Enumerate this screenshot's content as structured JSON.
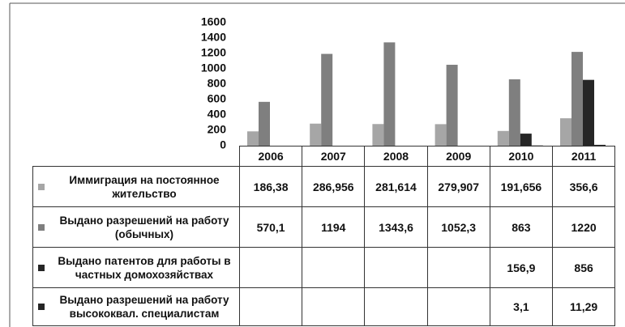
{
  "chart_data": {
    "type": "bar",
    "categories": [
      "2006",
      "2007",
      "2008",
      "2009",
      "2010",
      "2011"
    ],
    "series": [
      {
        "name": "Иммиграция на постоянное жительство",
        "color": "#a6a6a6",
        "values": [
          186.38,
          286.956,
          281.614,
          279.907,
          191.656,
          356.6
        ],
        "value_labels": [
          "186,38",
          "286,956",
          "281,614",
          "279,907",
          "191,656",
          "356,6"
        ]
      },
      {
        "name": "Выдано разрешений на работу (обычных)",
        "color": "#7f7f7f",
        "values": [
          570.1,
          1194,
          1343.6,
          1052.3,
          863,
          1220
        ],
        "value_labels": [
          "570,1",
          "1194",
          "1343,6",
          "1052,3",
          "863",
          "1220"
        ]
      },
      {
        "name": "Выдано патентов для работы в частных домохозяйствах",
        "color": "#262626",
        "values": [
          null,
          null,
          null,
          null,
          156.9,
          856
        ],
        "value_labels": [
          null,
          null,
          null,
          null,
          "156,9",
          "856"
        ]
      },
      {
        "name": "Выдано разрешений на работу высококвал. специалистам",
        "color": "#262626",
        "values": [
          null,
          null,
          null,
          null,
          3.1,
          11.29
        ],
        "value_labels": [
          null,
          null,
          null,
          null,
          "3,1",
          "11,29"
        ]
      }
    ],
    "ylim": [
      0,
      1600
    ],
    "yticks": [
      0,
      200,
      400,
      600,
      800,
      1000,
      1200,
      1400,
      1600
    ],
    "grid": false
  }
}
